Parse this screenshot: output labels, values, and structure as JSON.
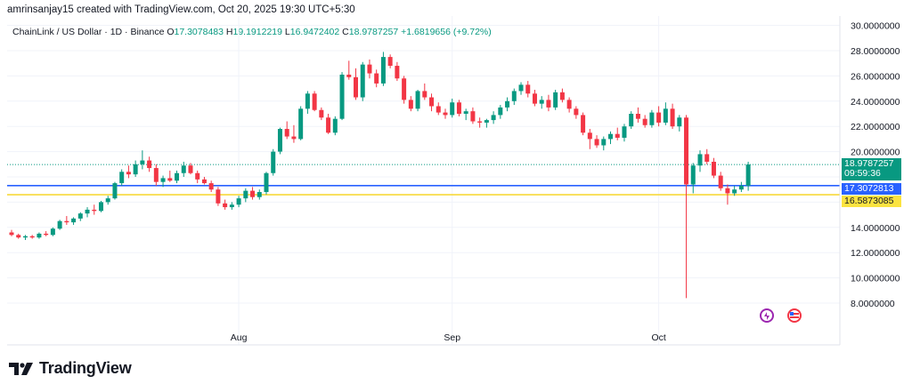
{
  "header": {
    "author_line": "amrinsanjay15 created with TradingView.com, Oct 20, 2025 19:30 UTC+5:30"
  },
  "legend": {
    "symbol": "ChainLink / US Dollar · 1D · Binance",
    "open_label": "O",
    "open": "17.3078483",
    "high_label": "H",
    "high": "19.1912219",
    "low_label": "L",
    "low": "16.9472402",
    "close_label": "C",
    "close": "18.9787257",
    "change": "+1.6819656 (+9.72%)"
  },
  "price_tags": {
    "last_price": "18.9787257",
    "countdown": "09:59:36",
    "blue_line": "17.3072813",
    "yellow_line": "16.5873085"
  },
  "logo": {
    "text": "TradingView"
  },
  "colors": {
    "up": "#089981",
    "down": "#f23645",
    "blue_line": "#2962ff",
    "yellow_line": "#f7d93a",
    "grid": "#f0f3fa",
    "axis_text": "#131722"
  },
  "chart_data": {
    "type": "candlestick",
    "title": "ChainLink / US Dollar · 1D · Binance",
    "ylim": [
      7,
      30.5
    ],
    "y_ticks": [
      8,
      10,
      12,
      14,
      16,
      18,
      20,
      22,
      24,
      26,
      28,
      30
    ],
    "y_tick_labels": [
      "8.0000000",
      "10.0000000",
      "12.0000000",
      "14.0000000",
      "16.0000000",
      "18.0000000",
      "20.0000000",
      "22.0000000",
      "24.0000000",
      "26.0000000",
      "28.0000000",
      "30.0000000"
    ],
    "x_tick_labels": [
      {
        "label": "Aug",
        "index": 33
      },
      {
        "label": "Sep",
        "index": 64
      },
      {
        "label": "Oct",
        "index": 94
      }
    ],
    "horizontal_lines": [
      {
        "value": 17.3072813,
        "color": "#2962ff"
      },
      {
        "value": 16.5873085,
        "color": "#f7d93a"
      }
    ],
    "last_price": 18.9787257,
    "candles": [
      [
        13.6,
        13.8,
        13.3,
        13.4
      ],
      [
        13.4,
        13.5,
        13.1,
        13.2
      ],
      [
        13.2,
        13.4,
        13.0,
        13.3
      ],
      [
        13.3,
        13.4,
        13.1,
        13.2
      ],
      [
        13.2,
        13.6,
        13.1,
        13.5
      ],
      [
        13.5,
        13.7,
        13.3,
        13.4
      ],
      [
        13.4,
        14.0,
        13.3,
        13.9
      ],
      [
        13.9,
        14.6,
        13.8,
        14.5
      ],
      [
        14.5,
        14.9,
        14.2,
        14.4
      ],
      [
        14.4,
        14.8,
        14.2,
        14.7
      ],
      [
        14.7,
        15.2,
        14.5,
        15.1
      ],
      [
        15.1,
        15.6,
        14.8,
        15.4
      ],
      [
        15.4,
        15.8,
        15.0,
        15.3
      ],
      [
        15.3,
        16.1,
        15.2,
        16.0
      ],
      [
        16.0,
        16.5,
        15.8,
        16.3
      ],
      [
        16.3,
        17.6,
        16.2,
        17.5
      ],
      [
        17.5,
        18.6,
        17.3,
        18.4
      ],
      [
        18.4,
        18.9,
        17.9,
        18.2
      ],
      [
        18.2,
        19.3,
        18.0,
        19.0
      ],
      [
        19.0,
        20.1,
        18.6,
        19.3
      ],
      [
        19.3,
        19.6,
        18.4,
        18.7
      ],
      [
        18.7,
        19.0,
        17.3,
        17.6
      ],
      [
        17.6,
        18.1,
        17.2,
        17.9
      ],
      [
        17.9,
        18.5,
        17.6,
        17.7
      ],
      [
        17.7,
        18.5,
        17.5,
        18.3
      ],
      [
        18.3,
        19.2,
        18.0,
        18.9
      ],
      [
        18.9,
        19.1,
        18.2,
        18.3
      ],
      [
        18.3,
        18.5,
        17.5,
        17.8
      ],
      [
        17.8,
        18.0,
        17.4,
        17.5
      ],
      [
        17.5,
        17.7,
        16.8,
        17.0
      ],
      [
        17.0,
        17.2,
        15.7,
        15.9
      ],
      [
        15.9,
        16.2,
        15.4,
        15.6
      ],
      [
        15.6,
        16.0,
        15.4,
        15.8
      ],
      [
        15.8,
        16.5,
        15.6,
        16.3
      ],
      [
        16.3,
        17.1,
        16.0,
        16.9
      ],
      [
        16.9,
        17.2,
        16.2,
        16.4
      ],
      [
        16.4,
        17.0,
        16.2,
        16.8
      ],
      [
        16.8,
        18.4,
        16.6,
        18.3
      ],
      [
        18.3,
        20.2,
        18.1,
        20.0
      ],
      [
        20.0,
        21.9,
        19.8,
        21.8
      ],
      [
        21.8,
        22.4,
        21.0,
        21.2
      ],
      [
        21.2,
        22.1,
        20.7,
        21.0
      ],
      [
        21.0,
        23.6,
        20.9,
        23.4
      ],
      [
        23.4,
        24.8,
        23.0,
        24.6
      ],
      [
        24.6,
        24.8,
        23.2,
        23.3
      ],
      [
        23.3,
        23.5,
        22.5,
        22.7
      ],
      [
        22.7,
        23.0,
        21.4,
        21.5
      ],
      [
        21.5,
        22.8,
        21.3,
        22.6
      ],
      [
        22.6,
        26.3,
        22.5,
        26.1
      ],
      [
        26.1,
        27.2,
        25.7,
        25.9
      ],
      [
        25.9,
        26.6,
        24.1,
        24.3
      ],
      [
        24.3,
        27.1,
        24.0,
        26.9
      ],
      [
        26.9,
        27.3,
        25.8,
        26.2
      ],
      [
        26.2,
        26.5,
        25.1,
        25.4
      ],
      [
        25.4,
        27.9,
        25.2,
        27.5
      ],
      [
        27.5,
        27.7,
        26.6,
        26.8
      ],
      [
        26.8,
        27.1,
        25.6,
        25.8
      ],
      [
        25.8,
        26.0,
        23.8,
        24.1
      ],
      [
        24.1,
        24.4,
        23.2,
        23.4
      ],
      [
        23.4,
        24.9,
        23.2,
        24.8
      ],
      [
        24.8,
        25.4,
        24.1,
        24.3
      ],
      [
        24.3,
        24.6,
        23.2,
        23.6
      ],
      [
        23.6,
        23.9,
        22.9,
        23.1
      ],
      [
        23.1,
        23.4,
        22.6,
        22.9
      ],
      [
        22.9,
        24.2,
        22.7,
        23.9
      ],
      [
        23.9,
        24.1,
        22.8,
        23.0
      ],
      [
        23.0,
        23.4,
        22.5,
        23.2
      ],
      [
        23.2,
        23.5,
        22.2,
        22.4
      ],
      [
        22.4,
        22.7,
        21.9,
        22.3
      ],
      [
        22.3,
        22.6,
        21.9,
        22.5
      ],
      [
        22.5,
        23.2,
        22.2,
        22.9
      ],
      [
        22.9,
        23.7,
        22.6,
        23.5
      ],
      [
        23.5,
        24.3,
        23.2,
        24.0
      ],
      [
        24.0,
        25.0,
        23.7,
        24.8
      ],
      [
        24.8,
        25.5,
        24.5,
        25.3
      ],
      [
        25.3,
        25.6,
        24.3,
        24.6
      ],
      [
        24.6,
        24.9,
        23.6,
        23.8
      ],
      [
        23.8,
        24.4,
        23.4,
        24.1
      ],
      [
        24.1,
        24.5,
        23.2,
        23.5
      ],
      [
        23.5,
        24.9,
        23.3,
        24.7
      ],
      [
        24.7,
        25.0,
        23.9,
        24.1
      ],
      [
        24.1,
        24.3,
        23.1,
        23.4
      ],
      [
        23.4,
        23.6,
        22.6,
        22.9
      ],
      [
        22.9,
        23.1,
        21.3,
        21.5
      ],
      [
        21.5,
        21.8,
        20.2,
        21.0
      ],
      [
        21.0,
        21.3,
        20.3,
        20.5
      ],
      [
        20.5,
        21.2,
        20.1,
        21.0
      ],
      [
        21.0,
        21.6,
        20.6,
        21.4
      ],
      [
        21.4,
        21.9,
        20.9,
        21.1
      ],
      [
        21.1,
        22.2,
        20.8,
        22.0
      ],
      [
        22.0,
        23.2,
        21.8,
        23.0
      ],
      [
        23.0,
        23.5,
        22.3,
        22.6
      ],
      [
        22.6,
        22.9,
        21.9,
        22.1
      ],
      [
        22.1,
        23.3,
        21.9,
        23.1
      ],
      [
        23.1,
        23.6,
        22.0,
        22.3
      ],
      [
        22.3,
        23.9,
        22.1,
        23.4
      ],
      [
        23.4,
        23.8,
        21.8,
        22.0
      ],
      [
        22.0,
        22.9,
        21.6,
        22.7
      ],
      [
        22.7,
        22.9,
        8.4,
        17.4
      ],
      [
        17.4,
        19.1,
        16.7,
        18.9
      ],
      [
        18.9,
        20.1,
        18.4,
        19.8
      ],
      [
        19.8,
        20.2,
        19.0,
        19.2
      ],
      [
        19.2,
        19.5,
        17.9,
        18.1
      ],
      [
        18.1,
        18.4,
        16.9,
        17.1
      ],
      [
        17.1,
        17.4,
        15.8,
        16.7
      ],
      [
        16.7,
        17.3,
        16.5,
        17.0
      ],
      [
        17.0,
        17.6,
        16.8,
        17.3
      ],
      [
        17.3,
        19.2,
        16.9,
        18.98
      ]
    ]
  }
}
